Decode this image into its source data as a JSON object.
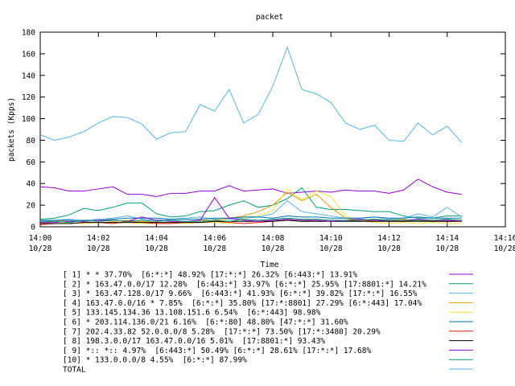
{
  "chart_data": {
    "type": "line",
    "title": "packet",
    "x_label": "Time",
    "y_label": "packets (Kpps)",
    "xlim": [
      0,
      16
    ],
    "ylim": [
      0,
      180
    ],
    "xticks": [
      {
        "value": 0,
        "label": "14:00",
        "date": "10/28"
      },
      {
        "value": 2,
        "label": "14:02",
        "date": "10/28"
      },
      {
        "value": 4,
        "label": "14:04",
        "date": "10/28"
      },
      {
        "value": 6,
        "label": "14:06",
        "date": "10/28"
      },
      {
        "value": 8,
        "label": "14:08",
        "date": "10/28"
      },
      {
        "value": 10,
        "label": "14:10",
        "date": "10/28"
      },
      {
        "value": 12,
        "label": "14:12",
        "date": "10/28"
      },
      {
        "value": 14,
        "label": "14:14",
        "date": "10/28"
      },
      {
        "value": 16,
        "label": "14:16",
        "date": "10/28"
      }
    ],
    "yticks": [
      0,
      20,
      40,
      60,
      80,
      100,
      120,
      140,
      160,
      180
    ],
    "x": [
      0,
      0.5,
      1,
      1.5,
      2,
      2.5,
      3,
      3.5,
      4,
      4.5,
      5,
      5.5,
      6,
      6.5,
      7,
      7.5,
      8,
      8.5,
      9,
      9.5,
      10,
      10.5,
      11,
      11.5,
      12,
      12.5,
      13,
      13.5,
      14,
      14.5
    ],
    "series": [
      {
        "name": "[ 1] * * 37.70%  [6:*:*] 48.92% [17:*:*] 26.32% [6:443:*] 13.91%",
        "color": "#9400d3",
        "values": [
          37,
          36,
          33,
          33,
          35,
          37,
          30,
          30,
          28,
          31,
          31,
          33,
          33,
          38,
          33,
          34,
          35,
          31,
          32,
          33,
          32,
          34,
          33,
          33,
          31,
          34,
          44,
          37,
          32,
          30
        ]
      },
      {
        "name": "[ 2] * 163.47.0.0/17 12.28%  [6:443:*] 33.97% [6:*:*] 25.95% [17:8801:*] 14.21%",
        "color": "#009e73",
        "values": [
          7,
          8,
          11,
          17,
          15,
          18,
          22,
          22,
          12,
          9,
          10,
          14,
          15,
          20,
          24,
          18,
          20,
          26,
          36,
          18,
          16,
          16,
          15,
          14,
          14,
          10,
          8,
          8,
          10,
          10
        ]
      },
      {
        "name": "[ 3] * 163.47.128.0/17 9.66%  [6:443:*] 41.93% [6:*:*] 39.82% [17:*:*] 16.55%",
        "color": "#56b4e9",
        "values": [
          5,
          6,
          7,
          6,
          7,
          8,
          10,
          7,
          6,
          7,
          8,
          9,
          7,
          7,
          8,
          9,
          12,
          24,
          14,
          12,
          10,
          8,
          8,
          9,
          7,
          8,
          12,
          9,
          18,
          9
        ]
      },
      {
        "name": "[ 4] 163.47.0.0/16 * 7.85%  [6:*:*] 35.80% [17:*:8801] 27.29% [6:*:443] 17.04%",
        "color": "#e69f00",
        "values": [
          4,
          5,
          6,
          5,
          6,
          5,
          6,
          5,
          5,
          6,
          5,
          6,
          6,
          8,
          10,
          14,
          20,
          32,
          24,
          30,
          18,
          8,
          6,
          7,
          6,
          7,
          5,
          6,
          6,
          6
        ]
      },
      {
        "name": "[ 5] 133.145.134.36 13.108.151.6 6.54%  [6:*:443] 98.98%",
        "color": "#f0e442",
        "values": [
          3,
          3,
          4,
          3,
          4,
          3,
          4,
          3,
          3,
          4,
          3,
          4,
          4,
          3,
          8,
          10,
          15,
          35,
          25,
          33,
          28,
          10,
          6,
          4,
          3,
          4,
          3,
          4,
          3,
          3
        ]
      },
      {
        "name": "[ 6] * 203.114.136.0/21 6.16%  [6:*:80] 48.80% [47:*:*] 31.60%",
        "color": "#0072b2",
        "values": [
          6,
          6,
          6,
          5,
          6,
          7,
          8,
          8,
          8,
          7,
          7,
          7,
          8,
          8,
          9,
          9,
          8,
          10,
          9,
          9,
          8,
          8,
          8,
          9,
          8,
          8,
          9,
          8,
          8,
          8
        ]
      },
      {
        "name": "[ 7] 202.4.33.82 52.0.0.0/8 5.28%  [17:*:*] 73.50% [17:*:3480] 20.29%",
        "color": "#e51e10",
        "values": [
          2,
          3,
          3,
          4,
          4,
          3,
          5,
          4,
          3,
          3,
          4,
          4,
          5,
          4,
          3,
          4,
          5,
          6,
          5,
          6,
          5,
          6,
          5,
          6,
          5,
          5,
          6,
          5,
          5,
          5
        ]
      },
      {
        "name": "[ 8] 198.3.0.0/17 163.47.0.0/16 5.01%  [17:8801:*] 93.43%",
        "color": "#000000",
        "values": [
          3,
          3,
          3,
          4,
          4,
          4,
          4,
          4,
          4,
          4,
          4,
          4,
          5,
          5,
          5,
          5,
          5,
          6,
          5,
          5,
          5,
          5,
          5,
          5,
          5,
          5,
          5,
          5,
          5,
          5
        ]
      },
      {
        "name": "[ 9] *:: *:: 4.97%  [6:443:*] 50.49% [6:*:*] 28.61% [17:*:*] 17.68%",
        "color": "#9400d3",
        "values": [
          4,
          4,
          5,
          5,
          6,
          6,
          5,
          9,
          6,
          5,
          5,
          6,
          27,
          8,
          6,
          5,
          6,
          7,
          6,
          6,
          5,
          6,
          7,
          6,
          6,
          6,
          7,
          6,
          6,
          5
        ]
      },
      {
        "name": "[10] * 133.0.0.0/8 4.55%  [6:*:*] 87.99%",
        "color": "#009e73",
        "values": [
          5,
          5,
          4,
          6,
          5,
          6,
          5,
          6,
          5,
          6,
          5,
          5,
          6,
          5,
          7,
          6,
          7,
          8,
          7,
          7,
          6,
          6,
          6,
          7,
          6,
          6,
          6,
          6,
          7,
          6
        ]
      },
      {
        "name": "TOTAL",
        "color": "#56b4e9",
        "values": [
          85,
          80,
          83,
          88,
          96,
          102,
          101,
          95,
          81,
          87,
          88,
          113,
          107,
          127,
          96,
          104,
          130,
          166,
          127,
          123,
          115,
          96,
          90,
          94,
          80,
          79,
          96,
          85,
          93,
          78
        ]
      }
    ]
  }
}
